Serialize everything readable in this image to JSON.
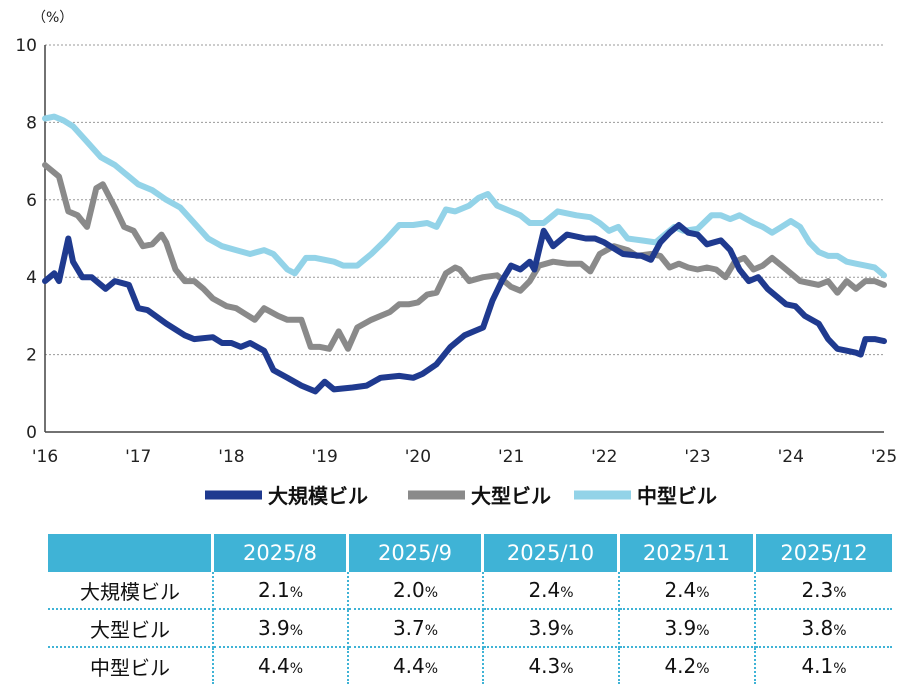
{
  "chart_data": {
    "type": "line",
    "unit_label": "（%）",
    "ylim": [
      0,
      10
    ],
    "yticks": [
      "0",
      "2",
      "4",
      "6",
      "8",
      "10"
    ],
    "xlim": [
      2016,
      2025
    ],
    "xticks": [
      "'16",
      "'17",
      "'18",
      "'19",
      "'20",
      "'21",
      "'22",
      "'23",
      "'24",
      "'25"
    ],
    "grid": true,
    "legend_position": "bottom",
    "series": [
      {
        "name": "大規模ビル",
        "color": "#1f3a8f",
        "points": [
          [
            2016.0,
            3.9
          ],
          [
            2016.1,
            4.1
          ],
          [
            2016.15,
            3.9
          ],
          [
            2016.25,
            5.0
          ],
          [
            2016.3,
            4.4
          ],
          [
            2016.4,
            4.0
          ],
          [
            2016.5,
            4.0
          ],
          [
            2016.65,
            3.7
          ],
          [
            2016.75,
            3.9
          ],
          [
            2016.9,
            3.8
          ],
          [
            2017.0,
            3.2
          ],
          [
            2017.1,
            3.15
          ],
          [
            2017.3,
            2.8
          ],
          [
            2017.5,
            2.5
          ],
          [
            2017.6,
            2.4
          ],
          [
            2017.8,
            2.45
          ],
          [
            2017.9,
            2.3
          ],
          [
            2018.0,
            2.3
          ],
          [
            2018.1,
            2.2
          ],
          [
            2018.2,
            2.3
          ],
          [
            2018.35,
            2.1
          ],
          [
            2018.45,
            1.6
          ],
          [
            2018.6,
            1.4
          ],
          [
            2018.75,
            1.2
          ],
          [
            2018.9,
            1.05
          ],
          [
            2019.0,
            1.3
          ],
          [
            2019.1,
            1.1
          ],
          [
            2019.3,
            1.15
          ],
          [
            2019.45,
            1.2
          ],
          [
            2019.6,
            1.4
          ],
          [
            2019.8,
            1.45
          ],
          [
            2019.95,
            1.4
          ],
          [
            2020.05,
            1.5
          ],
          [
            2020.2,
            1.75
          ],
          [
            2020.35,
            2.2
          ],
          [
            2020.5,
            2.5
          ],
          [
            2020.6,
            2.6
          ],
          [
            2020.7,
            2.7
          ],
          [
            2020.8,
            3.4
          ],
          [
            2020.9,
            3.9
          ],
          [
            2021.0,
            4.3
          ],
          [
            2021.1,
            4.2
          ],
          [
            2021.2,
            4.4
          ],
          [
            2021.25,
            4.2
          ],
          [
            2021.35,
            5.2
          ],
          [
            2021.45,
            4.8
          ],
          [
            2021.6,
            5.1
          ],
          [
            2021.8,
            5.0
          ],
          [
            2021.9,
            5.0
          ],
          [
            2022.0,
            4.9
          ],
          [
            2022.2,
            4.6
          ],
          [
            2022.4,
            4.55
          ],
          [
            2022.5,
            4.45
          ],
          [
            2022.6,
            4.9
          ],
          [
            2022.7,
            5.15
          ],
          [
            2022.8,
            5.35
          ],
          [
            2022.9,
            5.15
          ],
          [
            2023.0,
            5.1
          ],
          [
            2023.1,
            4.85
          ],
          [
            2023.25,
            4.95
          ],
          [
            2023.35,
            4.7
          ],
          [
            2023.45,
            4.2
          ],
          [
            2023.55,
            3.9
          ],
          [
            2023.65,
            4.0
          ],
          [
            2023.75,
            3.7
          ],
          [
            2023.85,
            3.5
          ],
          [
            2023.95,
            3.3
          ],
          [
            2024.05,
            3.25
          ],
          [
            2024.15,
            3.0
          ],
          [
            2024.3,
            2.8
          ],
          [
            2024.4,
            2.4
          ],
          [
            2024.5,
            2.15
          ],
          [
            2024.6,
            2.1
          ],
          [
            2024.7,
            2.05
          ],
          [
            2024.75,
            2.0
          ],
          [
            2024.8,
            2.4
          ],
          [
            2024.9,
            2.4
          ],
          [
            2025.0,
            2.35
          ]
        ]
      },
      {
        "name": "大型ビル",
        "color": "#8a8a8a",
        "points": [
          [
            2016.0,
            6.9
          ],
          [
            2016.1,
            6.7
          ],
          [
            2016.15,
            6.6
          ],
          [
            2016.25,
            5.7
          ],
          [
            2016.35,
            5.6
          ],
          [
            2016.45,
            5.3
          ],
          [
            2016.55,
            6.3
          ],
          [
            2016.62,
            6.4
          ],
          [
            2016.75,
            5.8
          ],
          [
            2016.85,
            5.3
          ],
          [
            2016.95,
            5.2
          ],
          [
            2017.05,
            4.8
          ],
          [
            2017.15,
            4.85
          ],
          [
            2017.25,
            5.1
          ],
          [
            2017.3,
            4.9
          ],
          [
            2017.4,
            4.2
          ],
          [
            2017.5,
            3.9
          ],
          [
            2017.6,
            3.9
          ],
          [
            2017.7,
            3.7
          ],
          [
            2017.8,
            3.45
          ],
          [
            2017.95,
            3.25
          ],
          [
            2018.05,
            3.2
          ],
          [
            2018.15,
            3.05
          ],
          [
            2018.25,
            2.9
          ],
          [
            2018.35,
            3.2
          ],
          [
            2018.5,
            3.0
          ],
          [
            2018.6,
            2.9
          ],
          [
            2018.75,
            2.9
          ],
          [
            2018.85,
            2.2
          ],
          [
            2018.95,
            2.2
          ],
          [
            2019.05,
            2.15
          ],
          [
            2019.15,
            2.6
          ],
          [
            2019.25,
            2.15
          ],
          [
            2019.35,
            2.7
          ],
          [
            2019.5,
            2.9
          ],
          [
            2019.6,
            3.0
          ],
          [
            2019.7,
            3.1
          ],
          [
            2019.8,
            3.3
          ],
          [
            2019.9,
            3.3
          ],
          [
            2020.0,
            3.35
          ],
          [
            2020.1,
            3.55
          ],
          [
            2020.2,
            3.6
          ],
          [
            2020.3,
            4.1
          ],
          [
            2020.4,
            4.25
          ],
          [
            2020.45,
            4.2
          ],
          [
            2020.55,
            3.9
          ],
          [
            2020.7,
            4.0
          ],
          [
            2020.85,
            4.05
          ],
          [
            2021.0,
            3.75
          ],
          [
            2021.1,
            3.65
          ],
          [
            2021.2,
            3.9
          ],
          [
            2021.3,
            4.3
          ],
          [
            2021.45,
            4.4
          ],
          [
            2021.6,
            4.35
          ],
          [
            2021.75,
            4.35
          ],
          [
            2021.85,
            4.15
          ],
          [
            2021.95,
            4.6
          ],
          [
            2022.1,
            4.8
          ],
          [
            2022.25,
            4.7
          ],
          [
            2022.35,
            4.55
          ],
          [
            2022.5,
            4.6
          ],
          [
            2022.6,
            4.55
          ],
          [
            2022.7,
            4.25
          ],
          [
            2022.8,
            4.35
          ],
          [
            2022.9,
            4.25
          ],
          [
            2023.0,
            4.2
          ],
          [
            2023.1,
            4.25
          ],
          [
            2023.2,
            4.2
          ],
          [
            2023.3,
            4.0
          ],
          [
            2023.4,
            4.4
          ],
          [
            2023.5,
            4.5
          ],
          [
            2023.6,
            4.2
          ],
          [
            2023.7,
            4.3
          ],
          [
            2023.8,
            4.5
          ],
          [
            2023.9,
            4.3
          ],
          [
            2024.0,
            4.1
          ],
          [
            2024.1,
            3.9
          ],
          [
            2024.2,
            3.85
          ],
          [
            2024.3,
            3.8
          ],
          [
            2024.4,
            3.9
          ],
          [
            2024.5,
            3.6
          ],
          [
            2024.6,
            3.9
          ],
          [
            2024.7,
            3.7
          ],
          [
            2024.8,
            3.9
          ],
          [
            2024.9,
            3.9
          ],
          [
            2025.0,
            3.8
          ]
        ]
      },
      {
        "name": "中型ビル",
        "color": "#93d3e8",
        "points": [
          [
            2016.0,
            8.1
          ],
          [
            2016.1,
            8.15
          ],
          [
            2016.2,
            8.05
          ],
          [
            2016.3,
            7.9
          ],
          [
            2016.45,
            7.5
          ],
          [
            2016.6,
            7.1
          ],
          [
            2016.75,
            6.9
          ],
          [
            2016.9,
            6.6
          ],
          [
            2017.0,
            6.4
          ],
          [
            2017.15,
            6.25
          ],
          [
            2017.3,
            6.0
          ],
          [
            2017.45,
            5.8
          ],
          [
            2017.6,
            5.4
          ],
          [
            2017.75,
            5.0
          ],
          [
            2017.9,
            4.8
          ],
          [
            2018.05,
            4.7
          ],
          [
            2018.2,
            4.6
          ],
          [
            2018.35,
            4.7
          ],
          [
            2018.45,
            4.6
          ],
          [
            2018.6,
            4.2
          ],
          [
            2018.68,
            4.1
          ],
          [
            2018.8,
            4.5
          ],
          [
            2018.9,
            4.5
          ],
          [
            2019.0,
            4.45
          ],
          [
            2019.1,
            4.4
          ],
          [
            2019.2,
            4.3
          ],
          [
            2019.35,
            4.3
          ],
          [
            2019.5,
            4.6
          ],
          [
            2019.65,
            4.95
          ],
          [
            2019.8,
            5.35
          ],
          [
            2019.95,
            5.35
          ],
          [
            2020.1,
            5.4
          ],
          [
            2020.2,
            5.3
          ],
          [
            2020.3,
            5.75
          ],
          [
            2020.4,
            5.7
          ],
          [
            2020.55,
            5.85
          ],
          [
            2020.65,
            6.05
          ],
          [
            2020.75,
            6.15
          ],
          [
            2020.85,
            5.85
          ],
          [
            2021.0,
            5.7
          ],
          [
            2021.1,
            5.6
          ],
          [
            2021.2,
            5.4
          ],
          [
            2021.35,
            5.4
          ],
          [
            2021.5,
            5.7
          ],
          [
            2021.7,
            5.6
          ],
          [
            2021.85,
            5.55
          ],
          [
            2021.95,
            5.4
          ],
          [
            2022.05,
            5.2
          ],
          [
            2022.15,
            5.3
          ],
          [
            2022.25,
            5.0
          ],
          [
            2022.4,
            4.95
          ],
          [
            2022.55,
            4.9
          ],
          [
            2022.65,
            5.1
          ],
          [
            2022.75,
            5.3
          ],
          [
            2022.85,
            5.2
          ],
          [
            2023.0,
            5.25
          ],
          [
            2023.15,
            5.6
          ],
          [
            2023.25,
            5.6
          ],
          [
            2023.35,
            5.5
          ],
          [
            2023.45,
            5.6
          ],
          [
            2023.6,
            5.4
          ],
          [
            2023.7,
            5.3
          ],
          [
            2023.8,
            5.15
          ],
          [
            2023.9,
            5.3
          ],
          [
            2024.0,
            5.45
          ],
          [
            2024.1,
            5.3
          ],
          [
            2024.2,
            4.9
          ],
          [
            2024.3,
            4.65
          ],
          [
            2024.4,
            4.55
          ],
          [
            2024.5,
            4.55
          ],
          [
            2024.6,
            4.4
          ],
          [
            2024.7,
            4.35
          ],
          [
            2024.8,
            4.3
          ],
          [
            2024.9,
            4.25
          ],
          [
            2025.0,
            4.05
          ]
        ]
      }
    ]
  },
  "table": {
    "headers": [
      "",
      "2025/8",
      "2025/9",
      "2025/10",
      "2025/11",
      "2025/12"
    ],
    "rows": [
      {
        "label": "大規模ビル",
        "values": [
          "2.1",
          "2.0",
          "2.4",
          "2.4",
          "2.3"
        ]
      },
      {
        "label": "大型ビル",
        "values": [
          "3.9",
          "3.7",
          "3.9",
          "3.9",
          "3.8"
        ]
      },
      {
        "label": "中型ビル",
        "values": [
          "4.4",
          "4.4",
          "4.3",
          "4.2",
          "4.1"
        ]
      }
    ],
    "unit_suffix": "%"
  }
}
